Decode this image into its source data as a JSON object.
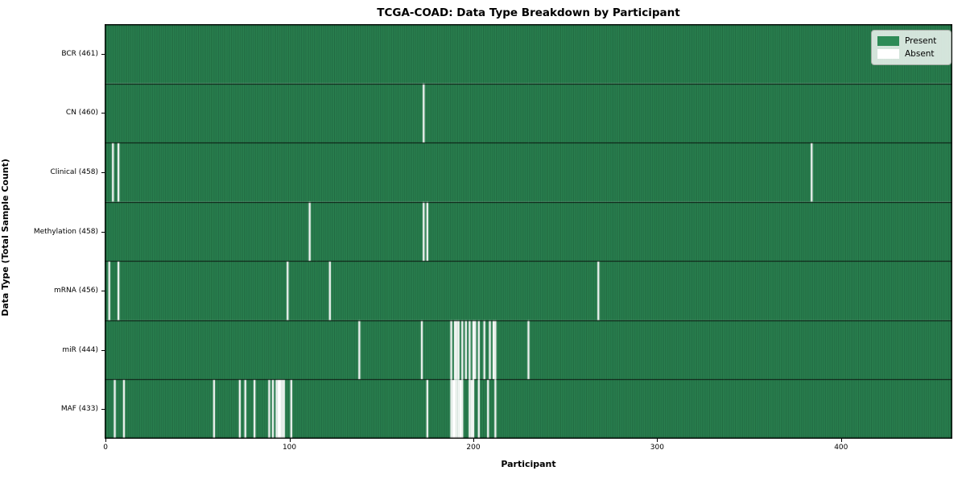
{
  "chart_data": {
    "type": "heatmap",
    "title": "TCGA-COAD: Data Type Breakdown by Participant",
    "xlabel": "Participant",
    "ylabel": "Data Type (Total Sample Count)",
    "participants_total": 461,
    "x_ticks": [
      0,
      100,
      200,
      300,
      400
    ],
    "legend": {
      "present_label": "Present",
      "absent_label": "Absent"
    },
    "colors": {
      "present": "#2e8b57",
      "absent": "#ffffff",
      "bar_edge": "rgba(8,35,20,0.6)",
      "row_line": "rgba(0,0,0,0.85)",
      "spine": "#000000"
    },
    "rows": [
      {
        "label": "BCR (461)",
        "data_type": "BCR",
        "sample_count": 461,
        "absent_participants": []
      },
      {
        "label": "CN (460)",
        "data_type": "CN",
        "sample_count": 460,
        "absent_participants": [
          173
        ]
      },
      {
        "label": "Clinical (458)",
        "data_type": "Clinical",
        "sample_count": 458,
        "absent_participants": [
          4,
          7,
          384
        ]
      },
      {
        "label": "Methylation (458)",
        "data_type": "Methylation",
        "sample_count": 458,
        "absent_participants": [
          111,
          173,
          175
        ]
      },
      {
        "label": "mRNA (456)",
        "data_type": "mRNA",
        "sample_count": 456,
        "absent_participants": [
          2,
          7,
          99,
          122,
          268
        ]
      },
      {
        "label": "miR (444)",
        "data_type": "miR",
        "sample_count": 444,
        "absent_participants": [
          138,
          172,
          188,
          190,
          191,
          192,
          194,
          196,
          198,
          200,
          201,
          203,
          206,
          209,
          211,
          212,
          230
        ]
      },
      {
        "label": "MAF (433)",
        "data_type": "MAF",
        "sample_count": 433,
        "absent_participants": [
          5,
          10,
          59,
          73,
          76,
          81,
          89,
          91,
          93,
          94,
          95,
          96,
          97,
          101,
          175,
          188,
          189,
          190,
          191,
          192,
          193,
          194,
          198,
          199,
          200,
          203,
          208,
          212
        ]
      }
    ]
  }
}
